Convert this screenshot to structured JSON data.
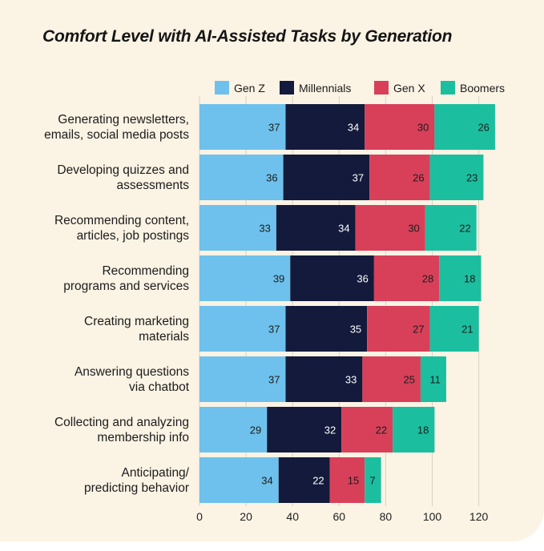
{
  "title": "Comfort Level with AI-Assisted Tasks by Generation",
  "colors": {
    "background": "#fbf3e4",
    "gen_z": "#6ec1ec",
    "millennials": "#131a3b",
    "gen_x": "#d8405a",
    "boomers": "#1bbf9f",
    "grid": "#d9d2c4"
  },
  "chart_data": {
    "type": "bar",
    "orientation": "horizontal",
    "stacked": true,
    "title": "Comfort Level with AI-Assisted Tasks by Generation",
    "categories": [
      [
        "Generating newsletters,",
        "emails, social media posts"
      ],
      [
        "Developing quizzes and",
        "assessments"
      ],
      [
        "Recommending content,",
        "articles, job postings"
      ],
      [
        "Recommending",
        "programs and services"
      ],
      [
        "Creating marketing",
        "materials"
      ],
      [
        "Answering questions",
        "via chatbot"
      ],
      [
        "Collecting and analyzing",
        "membership info"
      ],
      [
        "Anticipating/",
        "predicting behavior"
      ]
    ],
    "series": [
      {
        "name": "Gen Z",
        "values": [
          37,
          36,
          33,
          39,
          37,
          37,
          29,
          34
        ]
      },
      {
        "name": "Millennials",
        "values": [
          34,
          37,
          34,
          36,
          35,
          33,
          32,
          22
        ]
      },
      {
        "name": "Gen X",
        "values": [
          30,
          26,
          30,
          28,
          27,
          25,
          22,
          15
        ]
      },
      {
        "name": "Boomers",
        "values": [
          26,
          23,
          22,
          18,
          21,
          11,
          18,
          7
        ]
      }
    ],
    "xticks": [
      0,
      20,
      40,
      60,
      80,
      100,
      120
    ],
    "xlim": [
      0,
      128
    ],
    "grid": true,
    "legend_position": "top"
  }
}
